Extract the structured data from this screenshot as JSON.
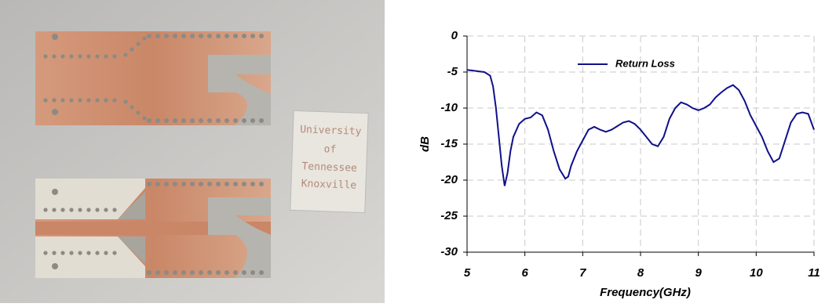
{
  "photo": {
    "label": [
      "University",
      "of",
      "Tennessee",
      "Knoxville"
    ]
  },
  "chart_data": {
    "type": "line",
    "xlabel": "Frequency(GHz)",
    "ylabel": "dB",
    "xlim": [
      5,
      11
    ],
    "xticks": [
      5,
      6,
      7,
      8,
      9,
      10,
      11
    ],
    "ylim": [
      -30,
      0
    ],
    "yticks": [
      0,
      -5,
      -10,
      -15,
      -20,
      -25,
      -30
    ],
    "grid": true,
    "legend": "top",
    "x": [
      5.0,
      5.1,
      5.2,
      5.3,
      5.4,
      5.45,
      5.5,
      5.55,
      5.6,
      5.65,
      5.7,
      5.75,
      5.8,
      5.9,
      6.0,
      6.1,
      6.2,
      6.3,
      6.4,
      6.5,
      6.6,
      6.7,
      6.75,
      6.8,
      6.9,
      7.0,
      7.1,
      7.2,
      7.3,
      7.4,
      7.5,
      7.6,
      7.7,
      7.8,
      7.9,
      8.0,
      8.1,
      8.2,
      8.3,
      8.4,
      8.5,
      8.6,
      8.7,
      8.8,
      8.9,
      9.0,
      9.1,
      9.2,
      9.3,
      9.4,
      9.5,
      9.6,
      9.7,
      9.8,
      9.9,
      10.0,
      10.1,
      10.2,
      10.3,
      10.4,
      10.5,
      10.6,
      10.7,
      10.8,
      10.9,
      11.0
    ],
    "series": [
      {
        "name": "Return Loss",
        "color": "#10108a",
        "values": [
          -4.7,
          -4.8,
          -4.9,
          -5.0,
          -5.5,
          -7,
          -10,
          -14,
          -18,
          -20.8,
          -19,
          -16,
          -14,
          -12.2,
          -11.5,
          -11.3,
          -10.6,
          -11,
          -13,
          -16,
          -18.5,
          -19.8,
          -19.5,
          -18,
          -16,
          -14.5,
          -13,
          -12.6,
          -13,
          -13.3,
          -13,
          -12.5,
          -12,
          -11.8,
          -12.2,
          -13,
          -14,
          -15,
          -15.3,
          -14,
          -11.5,
          -10,
          -9.2,
          -9.5,
          -10,
          -10.3,
          -10,
          -9.5,
          -8.5,
          -7.8,
          -7.2,
          -6.8,
          -7.5,
          -9,
          -11,
          -12.5,
          -14,
          -16,
          -17.5,
          -17,
          -14.5,
          -12,
          -10.8,
          -10.6,
          -10.8,
          -13
        ]
      }
    ]
  }
}
